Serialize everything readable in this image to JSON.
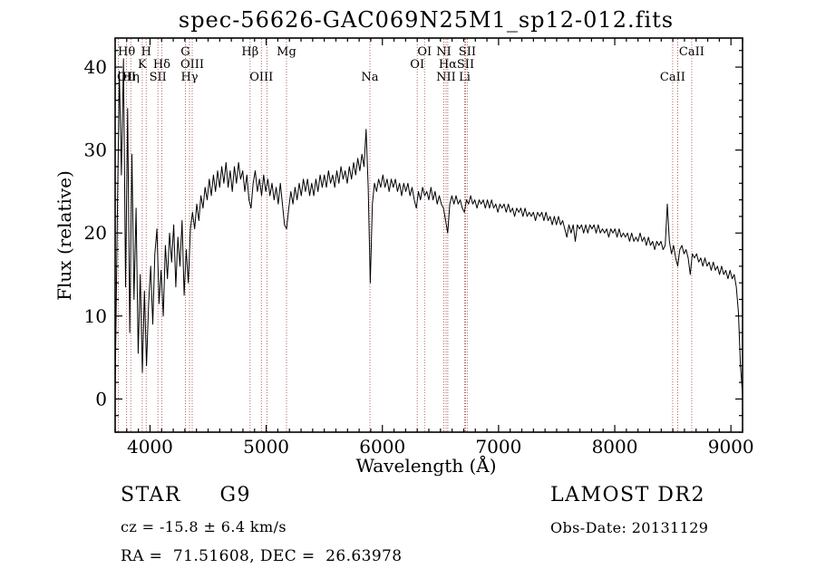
{
  "chart_data": {
    "type": "line",
    "title": "spec-56626-GAC069N25M1_sp12-012.fits",
    "xlabel": "Wavelength (Å)",
    "ylabel": "Flux (relative)",
    "xlim": [
      3700,
      9100
    ],
    "ylim": [
      -4,
      43.5
    ],
    "x_ticks": [
      4000,
      5000,
      6000,
      7000,
      8000,
      9000
    ],
    "y_ticks": [
      0,
      10,
      20,
      30,
      40
    ],
    "x_minor_step": 100,
    "y_minor_step": 2,
    "grid": false,
    "legend": "none",
    "line_color": "#000000",
    "marker_line_color": "#b06a63",
    "marker_label_color": "#7c2a24",
    "spectrum": {
      "x_start": 3700,
      "x_step": 18,
      "flux": [
        0.8,
        21.0,
        39.5,
        27.0,
        41.0,
        13.5,
        35.0,
        8.0,
        29.5,
        12.0,
        23.0,
        5.5,
        15.0,
        3.2,
        13.0,
        4.0,
        11.5,
        16.0,
        9.0,
        17.5,
        20.5,
        11.5,
        15.5,
        10.0,
        18.5,
        14.5,
        20.0,
        16.5,
        21.0,
        13.5,
        19.5,
        16.0,
        21.5,
        12.5,
        18.0,
        14.0,
        20.5,
        22.5,
        20.5,
        23.5,
        21.5,
        24.5,
        23.0,
        25.5,
        24.0,
        26.5,
        24.5,
        27.0,
        25.0,
        27.5,
        25.5,
        28.0,
        26.0,
        28.5,
        25.5,
        27.5,
        25.0,
        28.0,
        26.0,
        28.5,
        26.5,
        27.5,
        25.0,
        27.0,
        24.0,
        23.0,
        26.0,
        27.5,
        25.0,
        26.5,
        24.5,
        27.0,
        25.0,
        26.5,
        24.5,
        26.0,
        24.0,
        25.5,
        23.5,
        26.0,
        23.5,
        21.0,
        20.5,
        23.0,
        25.0,
        23.5,
        25.5,
        24.0,
        26.0,
        24.5,
        26.5,
        25.0,
        26.5,
        24.5,
        26.0,
        24.5,
        26.5,
        25.0,
        27.0,
        25.5,
        27.0,
        25.5,
        27.5,
        26.0,
        27.0,
        25.5,
        27.5,
        26.0,
        28.0,
        26.5,
        27.5,
        26.0,
        28.0,
        26.5,
        28.5,
        27.0,
        29.0,
        27.5,
        29.5,
        28.0,
        32.5,
        25.5,
        14.0,
        23.5,
        26.0,
        25.0,
        26.5,
        25.5,
        27.0,
        25.5,
        26.5,
        25.0,
        26.5,
        25.5,
        26.5,
        25.0,
        26.0,
        24.5,
        26.0,
        25.0,
        26.0,
        24.5,
        25.5,
        24.0,
        23.0,
        25.0,
        24.0,
        25.5,
        24.5,
        25.0,
        24.0,
        25.5,
        24.0,
        25.0,
        23.5,
        24.5,
        23.5,
        23.0,
        21.5,
        20.0,
        23.5,
        24.5,
        23.5,
        24.5,
        23.5,
        24.0,
        23.0,
        22.5,
        24.0,
        23.5,
        24.5,
        23.5,
        24.0,
        23.0,
        24.0,
        23.5,
        24.0,
        23.0,
        24.0,
        23.0,
        24.0,
        23.0,
        23.5,
        22.5,
        23.5,
        23.0,
        23.5,
        22.5,
        23.5,
        22.5,
        23.0,
        22.0,
        23.0,
        22.5,
        23.0,
        22.0,
        23.0,
        22.0,
        22.5,
        22.0,
        22.5,
        21.5,
        22.5,
        22.0,
        22.5,
        21.5,
        22.5,
        21.5,
        22.0,
        21.0,
        22.0,
        21.0,
        22.0,
        21.0,
        21.5,
        20.5,
        19.5,
        21.0,
        20.0,
        21.0,
        19.0,
        21.0,
        20.5,
        21.0,
        20.0,
        21.0,
        20.0,
        21.0,
        20.5,
        21.0,
        20.0,
        21.0,
        20.0,
        20.5,
        20.0,
        20.5,
        19.5,
        20.5,
        20.0,
        20.5,
        19.5,
        20.5,
        19.5,
        20.0,
        19.5,
        20.0,
        19.0,
        20.0,
        19.0,
        19.5,
        19.0,
        20.0,
        19.0,
        19.5,
        18.5,
        19.5,
        18.5,
        19.0,
        18.0,
        19.0,
        18.5,
        19.0,
        18.0,
        18.5,
        23.5,
        19.0,
        17.5,
        18.5,
        17.0,
        16.0,
        18.0,
        18.5,
        17.5,
        18.0,
        17.0,
        15.0,
        17.5,
        17.0,
        17.5,
        16.5,
        17.0,
        16.0,
        17.0,
        16.0,
        16.5,
        15.5,
        16.5,
        15.5,
        16.0,
        15.0,
        16.0,
        15.0,
        15.5,
        14.5,
        15.5,
        14.5,
        15.0,
        13.5,
        10.5,
        4.0,
        0.5
      ]
    },
    "line_markers": [
      {
        "wavelength": 3727,
        "label": "OII",
        "row": 3
      },
      {
        "wavelength": 3798,
        "label": "Hθ",
        "row": 1
      },
      {
        "wavelength": 3835,
        "label": "Hη",
        "row": 3
      },
      {
        "wavelength": 3933,
        "label": "K",
        "row": 2
      },
      {
        "wavelength": 3968,
        "label": "H",
        "row": 1
      },
      {
        "wavelength": 4068,
        "label": "SII",
        "row": 3
      },
      {
        "wavelength": 4101,
        "label": "Hδ",
        "row": 2
      },
      {
        "wavelength": 4305,
        "label": "G",
        "row": 1
      },
      {
        "wavelength": 4340,
        "label": "Hγ",
        "row": 3
      },
      {
        "wavelength": 4363,
        "label": "OIII",
        "row": 2
      },
      {
        "wavelength": 4861,
        "label": "Hβ",
        "row": 1
      },
      {
        "wavelength": 4959,
        "label": "OIII",
        "row": 3
      },
      {
        "wavelength": 5007,
        "label": "",
        "row": 0
      },
      {
        "wavelength": 5175,
        "label": "Mg",
        "row": 1
      },
      {
        "wavelength": 5893,
        "label": "Na",
        "row": 3
      },
      {
        "wavelength": 6300,
        "label": "OI",
        "row": 2
      },
      {
        "wavelength": 6363,
        "label": "OI",
        "row": 1
      },
      {
        "wavelength": 6529,
        "label": "NI",
        "row": 1
      },
      {
        "wavelength": 6548,
        "label": "NII",
        "row": 3
      },
      {
        "wavelength": 6563,
        "label": "Hα",
        "row": 2
      },
      {
        "wavelength": 6708,
        "label": "Li",
        "row": 3
      },
      {
        "wavelength": 6716,
        "label": "SII",
        "row": 2
      },
      {
        "wavelength": 6731,
        "label": "SII",
        "row": 1
      },
      {
        "wavelength": 8498,
        "label": "CaII",
        "row": 3
      },
      {
        "wavelength": 8542,
        "label": "",
        "row": 0
      },
      {
        "wavelength": 8662,
        "label": "CaII",
        "row": 1
      }
    ]
  },
  "footer": {
    "left": {
      "class_label": "STAR     G9",
      "cz": "cz = -15.8 ± 6.4 km/s",
      "ra_dec": "RA =  71.51608, DEC =  26.63978"
    },
    "right": {
      "survey": "LAMOST DR2",
      "obs_date": "Obs-Date: 20131129"
    }
  }
}
